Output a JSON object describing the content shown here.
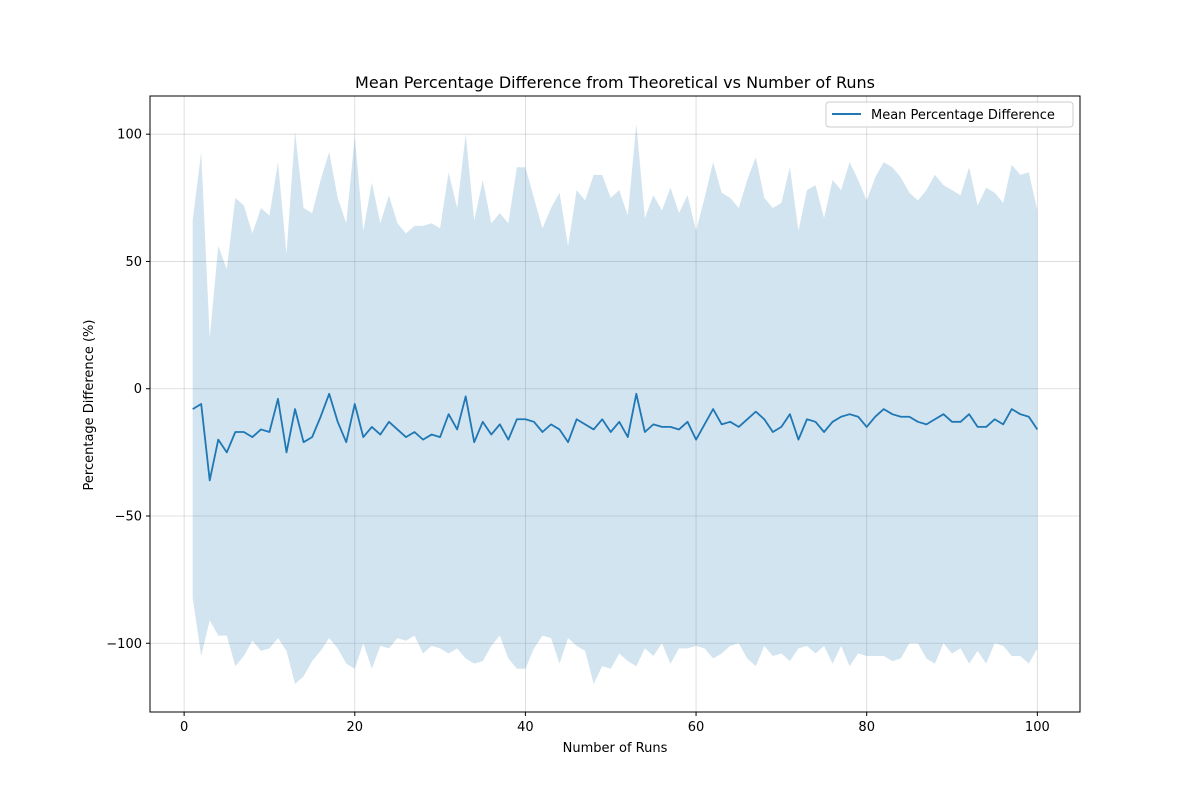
{
  "chart_data": {
    "type": "line",
    "title": "Mean Percentage Difference from Theoretical vs Number of Runs",
    "xlabel": "Number of Runs",
    "ylabel": "Percentage Difference (%)",
    "xlim": [
      -4,
      105
    ],
    "ylim": [
      -127,
      115
    ],
    "xticks": [
      0,
      20,
      40,
      60,
      80,
      100
    ],
    "yticks": [
      -100,
      -50,
      0,
      50,
      100
    ],
    "xtick_labels": [
      "0",
      "20",
      "40",
      "60",
      "80",
      "100"
    ],
    "ytick_labels": [
      "−100",
      "−50",
      "0",
      "50",
      "100"
    ],
    "grid": true,
    "legend": {
      "position": "upper right",
      "entries": [
        "Mean Percentage Difference"
      ]
    },
    "colors": {
      "line": "#1f77b4",
      "band": "#1f77b4",
      "band_opacity": 0.2,
      "grid": "#b0b0b0"
    },
    "series": [
      {
        "name": "Mean Percentage Difference",
        "x": [
          1,
          2,
          3,
          4,
          5,
          6,
          7,
          8,
          9,
          10,
          11,
          12,
          13,
          14,
          15,
          16,
          17,
          18,
          19,
          20,
          21,
          22,
          23,
          24,
          25,
          26,
          27,
          28,
          29,
          30,
          31,
          32,
          33,
          34,
          35,
          36,
          37,
          38,
          39,
          40,
          41,
          42,
          43,
          44,
          45,
          46,
          47,
          48,
          49,
          50,
          51,
          52,
          53,
          54,
          55,
          56,
          57,
          58,
          59,
          60,
          61,
          62,
          63,
          64,
          65,
          66,
          67,
          68,
          69,
          70,
          71,
          72,
          73,
          74,
          75,
          76,
          77,
          78,
          79,
          80,
          81,
          82,
          83,
          84,
          85,
          86,
          87,
          88,
          89,
          90,
          91,
          92,
          93,
          94,
          95,
          96,
          97,
          98,
          99,
          100
        ],
        "y": [
          -8,
          -6,
          -36,
          -20,
          -25,
          -17,
          -17,
          -19,
          -16,
          -17,
          -4,
          -25,
          -8,
          -21,
          -19,
          -11,
          -2,
          -13,
          -21,
          -6,
          -19,
          -15,
          -18,
          -13,
          -16,
          -19,
          -17,
          -20,
          -18,
          -19,
          -10,
          -16,
          -3,
          -21,
          -13,
          -18,
          -14,
          -20,
          -12,
          -12,
          -13,
          -17,
          -14,
          -16,
          -21,
          -12,
          -14,
          -16,
          -12,
          -17,
          -13,
          -19,
          -2,
          -17,
          -14,
          -15,
          -15,
          -16,
          -13,
          -20,
          -14,
          -8,
          -14,
          -13,
          -15,
          -12,
          -9,
          -12,
          -17,
          -15,
          -10,
          -20,
          -12,
          -13,
          -17,
          -13,
          -11,
          -10,
          -11,
          -15,
          -11,
          -8,
          -10,
          -11,
          -11,
          -13,
          -14,
          -12,
          -10,
          -13,
          -13,
          -10,
          -15,
          -15,
          -12,
          -14,
          -8,
          -10,
          -11,
          -16
        ],
        "upper": [
          66,
          93,
          20,
          56,
          47,
          75,
          72,
          61,
          71,
          68,
          89,
          53,
          101,
          71,
          69,
          82,
          93,
          75,
          65,
          99,
          62,
          81,
          65,
          76,
          65,
          61,
          64,
          64,
          65,
          63,
          85,
          71,
          100,
          66,
          82,
          65,
          69,
          65,
          87,
          87,
          75,
          63,
          71,
          77,
          56,
          78,
          74,
          84,
          84,
          75,
          78,
          68,
          104,
          67,
          76,
          70,
          79,
          69,
          76,
          62,
          75,
          89,
          77,
          75,
          71,
          82,
          91,
          75,
          71,
          73,
          87,
          62,
          78,
          80,
          67,
          82,
          78,
          89,
          82,
          74,
          83,
          89,
          87,
          83,
          77,
          74,
          78,
          84,
          80,
          78,
          76,
          87,
          72,
          79,
          77,
          73,
          88,
          84,
          85,
          70
        ],
        "lower": [
          -82,
          -105,
          -91,
          -97,
          -97,
          -109,
          -105,
          -99,
          -103,
          -102,
          -98,
          -103,
          -116,
          -113,
          -107,
          -103,
          -98,
          -102,
          -108,
          -110,
          -100,
          -110,
          -101,
          -102,
          -98,
          -99,
          -97,
          -104,
          -101,
          -102,
          -104,
          -102,
          -106,
          -108,
          -107,
          -101,
          -97,
          -106,
          -110,
          -110,
          -102,
          -97,
          -98,
          -108,
          -98,
          -101,
          -103,
          -116,
          -109,
          -110,
          -104,
          -107,
          -109,
          -102,
          -105,
          -100,
          -108,
          -102,
          -102,
          -101,
          -102,
          -106,
          -104,
          -101,
          -100,
          -106,
          -109,
          -101,
          -105,
          -104,
          -107,
          -102,
          -101,
          -104,
          -101,
          -108,
          -101,
          -109,
          -104,
          -105,
          -105,
          -105,
          -107,
          -106,
          -100,
          -100,
          -106,
          -108,
          -100,
          -104,
          -102,
          -108,
          -103,
          -108,
          -100,
          -101,
          -105,
          -105,
          -108,
          -102
        ]
      }
    ]
  }
}
